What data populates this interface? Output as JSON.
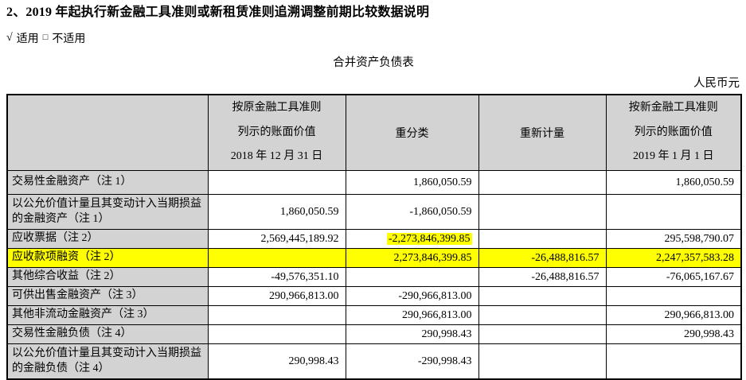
{
  "page": {
    "section_title": "2、2019 年起执行新金融工具准则或新租赁准则追溯调整前期比较数据说明",
    "applicability": {
      "check_symbol": "√",
      "applicable_label": "适用",
      "checkbox_symbol": "□",
      "not_applicable_label": "不适用"
    },
    "table_title": "合并资产负债表",
    "currency_note": "人民币元"
  },
  "table": {
    "header": {
      "col_original": [
        "按原金融工具准则",
        "列示的账面价值",
        "2018 年 12 月 31 日"
      ],
      "col_reclass": "重分类",
      "col_remeasure": "重新计量",
      "col_new": [
        "按新金融工具准则",
        "列示的账面价值",
        "2019 年 1 月 1 日"
      ]
    },
    "rows": [
      {
        "label": "交易性金融资产（注 1）",
        "values": [
          "",
          "1,860,050.59",
          "",
          "1,860,050.59"
        ]
      },
      {
        "label": "以公允价值计量且其变动计入当期损益的金融资产（注 1）",
        "values": [
          "1,860,050.59",
          "-1,860,050.59",
          "",
          ""
        ]
      },
      {
        "label": "应收票据（注 2）",
        "values": [
          "2,569,445,189.92",
          "-2,273,846,399.85",
          "",
          "295,598,790.07"
        ],
        "highlighted_value_index": 1
      },
      {
        "label": "应收款项融资（注 2）",
        "values": [
          "",
          "2,273,846,399.85",
          "-26,488,816.57",
          "2,247,357,583.28"
        ],
        "row_highlighted": true
      },
      {
        "label": "其他综合收益（注 2）",
        "values": [
          "-49,576,351.10",
          "",
          "-26,488,816.57",
          "-76,065,167.67"
        ]
      },
      {
        "label": "可供出售金融资产（注 3）",
        "values": [
          "290,966,813.00",
          "-290,966,813.00",
          "",
          ""
        ]
      },
      {
        "label": "其他非流动金融资产（注 3）",
        "values": [
          "",
          "290,966,813.00",
          "",
          "290,966,813.00"
        ]
      },
      {
        "label": "交易性金融负债（注 4）",
        "values": [
          "",
          "290,998.43",
          "",
          "290,998.43"
        ]
      },
      {
        "label": "以公允价值计量且其变动计入当期损益的金融负债（注 4）",
        "values": [
          "290,998.43",
          "-290,998.43",
          "",
          ""
        ]
      }
    ],
    "colors": {
      "header_bg": "#d3d3d3",
      "label_bg": "#d3d3d3",
      "highlight_yellow": "#ffff00",
      "border": "#000000"
    }
  }
}
